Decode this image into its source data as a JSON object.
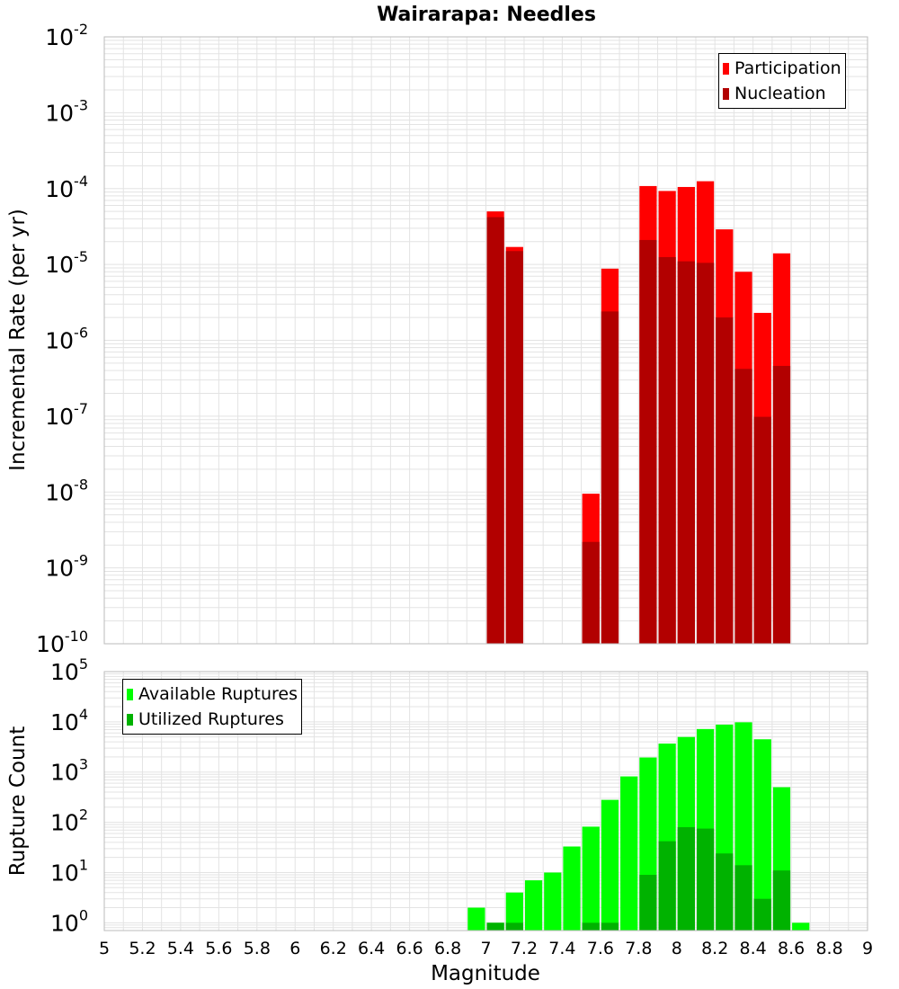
{
  "title": "Wairarapa: Needles",
  "colors": {
    "participation": "#ff0000",
    "nucleation": "#b20000",
    "available": "#00ff00",
    "utilized": "#00b200",
    "grid": "#e3e3e3",
    "border": "#bbbbbb"
  },
  "chart_data": [
    {
      "type": "bar",
      "title": "Wairarapa: Needles",
      "xlabel": "",
      "ylabel": "Incremental Rate (per yr)",
      "xlim": [
        5,
        9
      ],
      "ylim": [
        1e-10,
        0.01
      ],
      "yscale": "log",
      "grid": true,
      "legend_position": "top-right",
      "bin_width": 0.1,
      "ytick_exponents": [
        -10,
        -9,
        -8,
        -7,
        -6,
        -5,
        -4,
        -3,
        -2
      ],
      "x": [
        7.05,
        7.15,
        7.55,
        7.65,
        7.85,
        7.95,
        8.05,
        8.15,
        8.25,
        8.35,
        8.45,
        8.55
      ],
      "series": [
        {
          "name": "Participation",
          "values": [
            5e-05,
            1.7e-05,
            9.5e-09,
            8.8e-06,
            0.000108,
            9.3e-05,
            0.000105,
            0.000125,
            2.9e-05,
            8e-06,
            2.3e-06,
            1.4e-05
          ]
        },
        {
          "name": "Nucleation",
          "values": [
            4.2e-05,
            1.5e-05,
            2.2e-09,
            2.4e-06,
            2.1e-05,
            1.25e-05,
            1.1e-05,
            1.05e-05,
            2e-06,
            4.2e-07,
            9.8e-08,
            4.6e-07
          ]
        }
      ]
    },
    {
      "type": "bar",
      "title": "",
      "xlabel": "Magnitude",
      "ylabel": "Rupture Count",
      "xlim": [
        5,
        9
      ],
      "ylim": [
        0.7,
        100000.0
      ],
      "yscale": "log",
      "grid": true,
      "legend_position": "top-left",
      "bin_width": 0.1,
      "ytick_exponents": [
        0,
        1,
        2,
        3,
        4,
        5
      ],
      "xticks": [
        "5",
        "5.2",
        "5.4",
        "5.6",
        "5.8",
        "6",
        "6.2",
        "6.4",
        "6.6",
        "6.8",
        "7",
        "7.2",
        "7.4",
        "7.6",
        "7.8",
        "8",
        "8.2",
        "8.4",
        "8.6",
        "8.8",
        "9"
      ],
      "x": [
        6.95,
        7.05,
        7.15,
        7.25,
        7.35,
        7.45,
        7.55,
        7.65,
        7.75,
        7.85,
        7.95,
        8.05,
        8.15,
        8.25,
        8.35,
        8.45,
        8.55,
        8.65
      ],
      "series": [
        {
          "name": "Available Ruptures",
          "values": [
            2,
            1,
            4,
            7,
            10,
            33,
            82,
            280,
            820,
            1950,
            3700,
            5000,
            7200,
            8800,
            9800,
            4500,
            500,
            1
          ]
        },
        {
          "name": "Utilized Ruptures",
          "values": [
            0,
            1,
            1,
            0,
            0,
            0,
            1,
            1,
            0,
            9,
            42,
            80,
            75,
            24,
            14,
            3,
            11,
            0
          ]
        }
      ]
    }
  ]
}
